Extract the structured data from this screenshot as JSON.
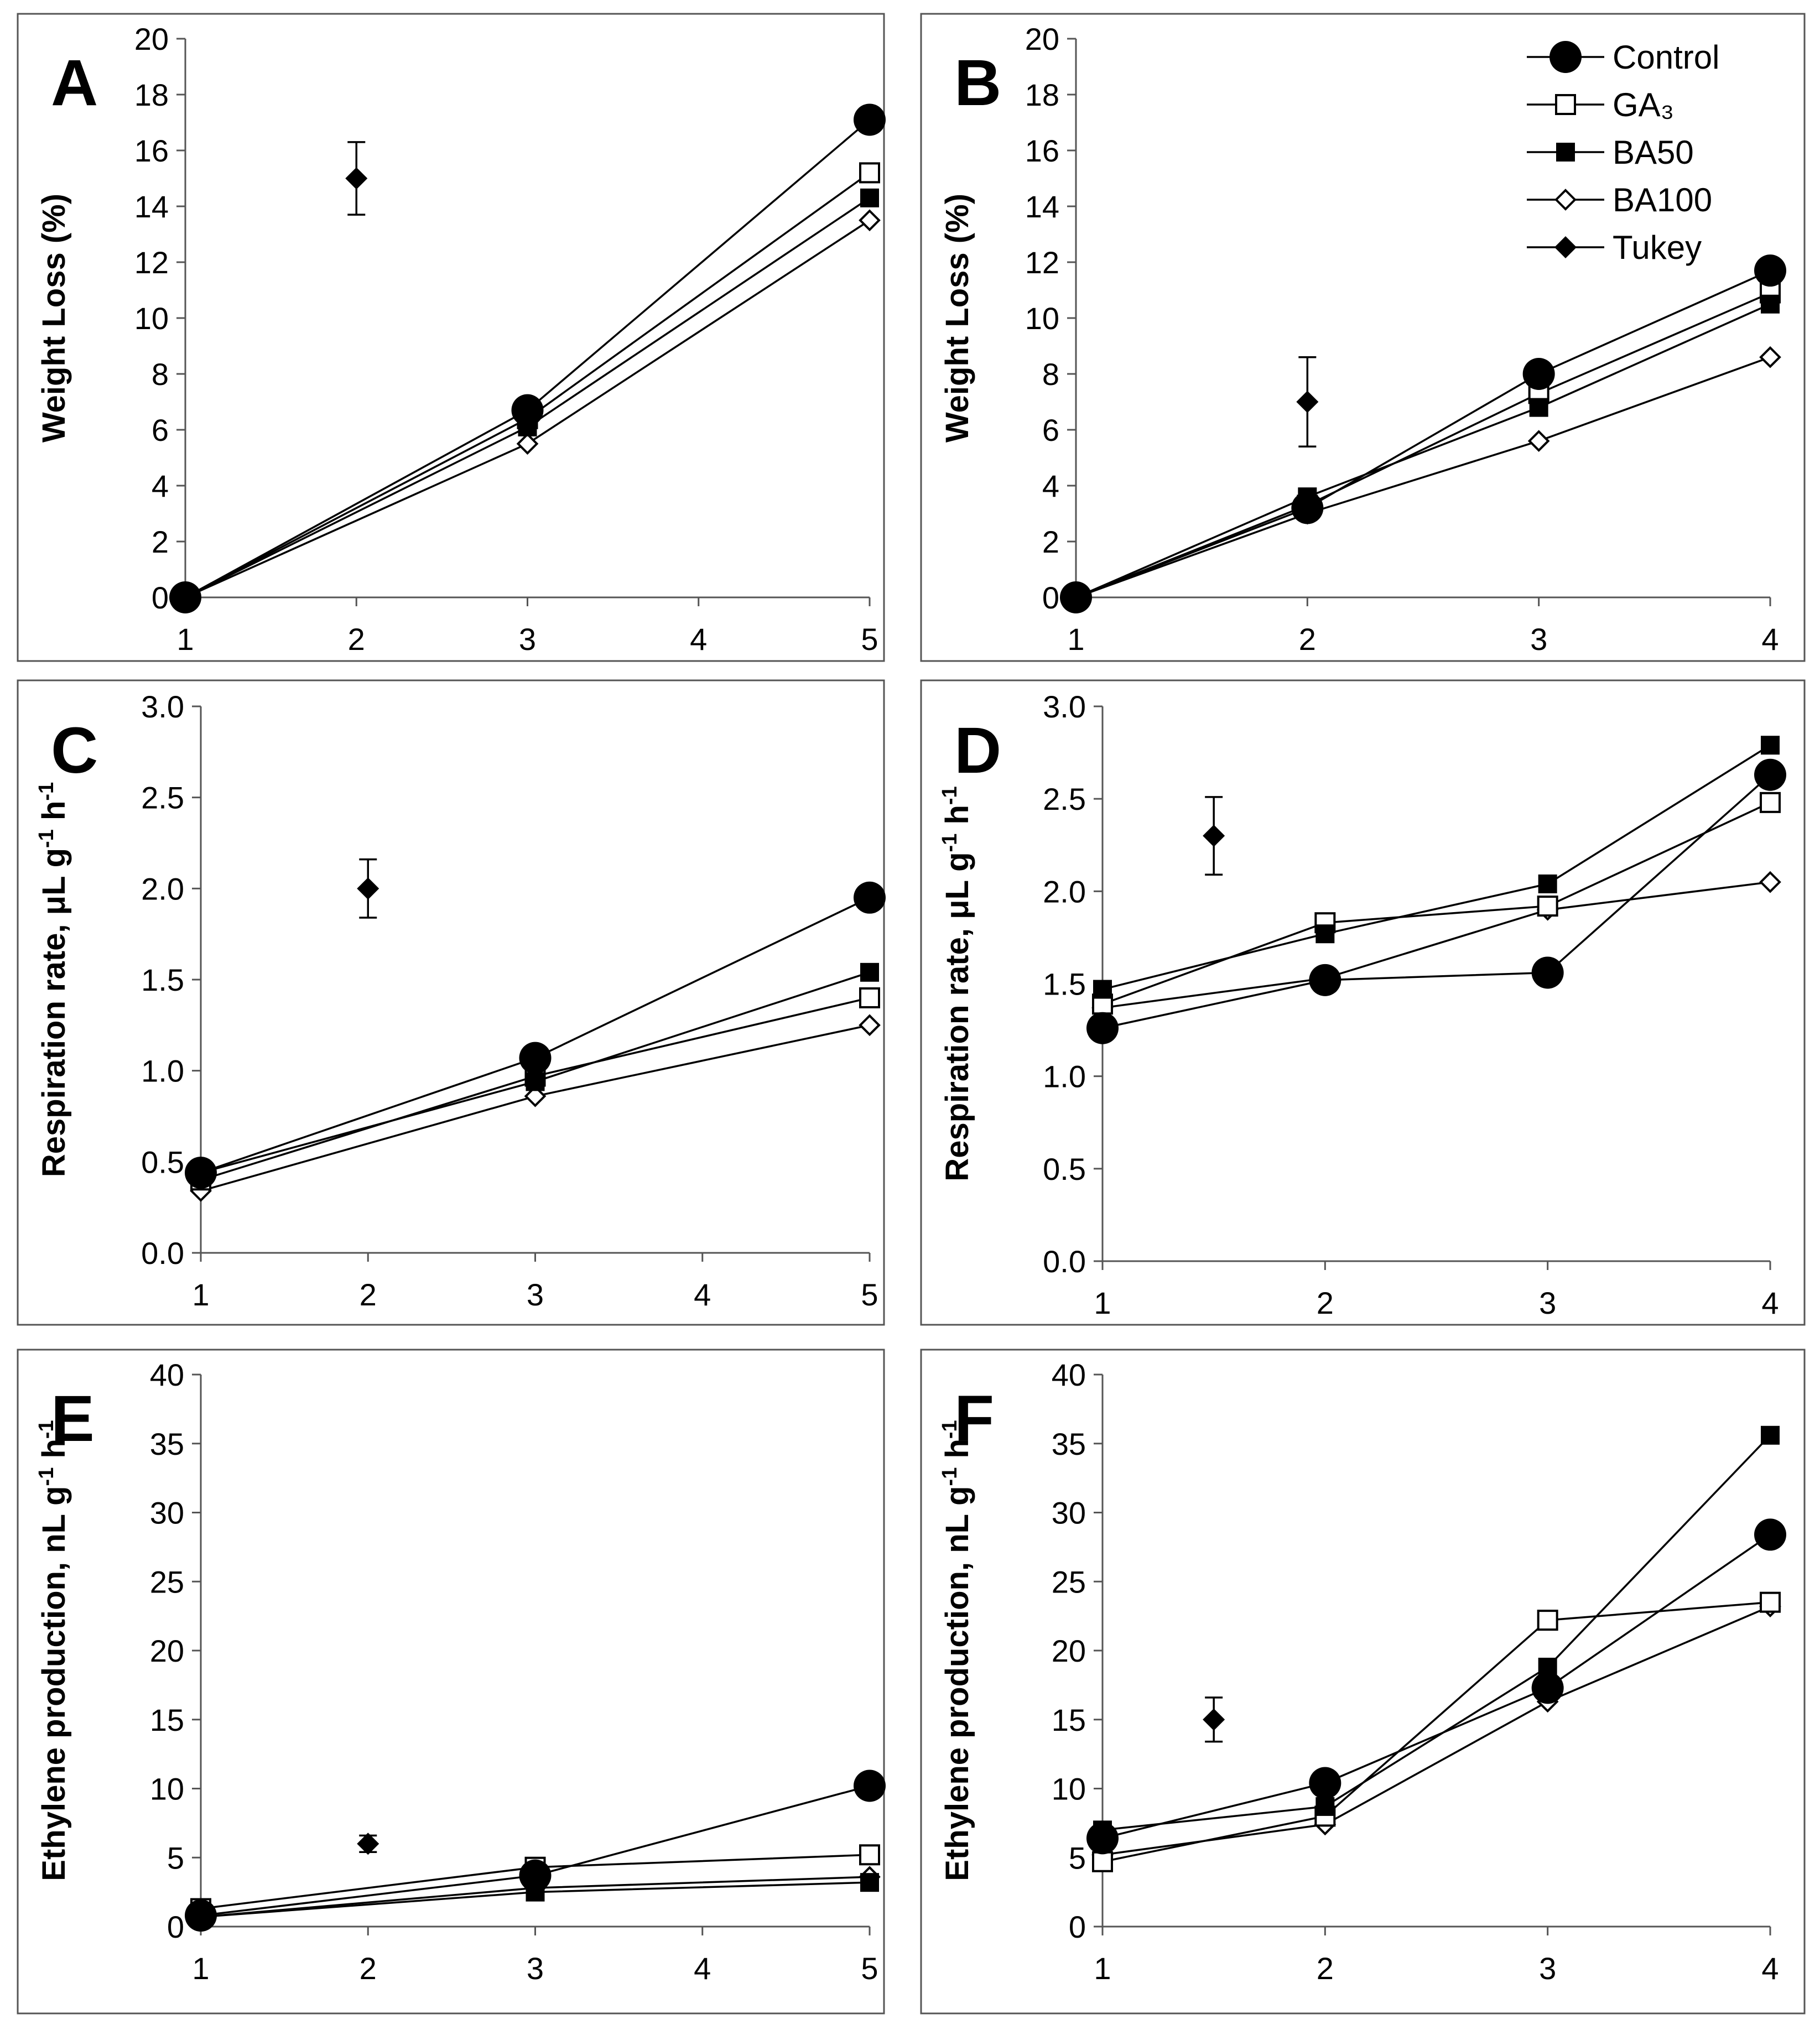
{
  "legend": [
    {
      "key": "control",
      "label": "Control",
      "marker": "circle-filled"
    },
    {
      "key": "ga3",
      "label": "GA₃",
      "marker": "square-open"
    },
    {
      "key": "ba50",
      "label": "BA50",
      "marker": "square-filled"
    },
    {
      "key": "ba100",
      "label": "BA100",
      "marker": "diamond-open"
    },
    {
      "key": "tukey",
      "label": "Tukey",
      "marker": "diamond-filled"
    }
  ],
  "chart_data": [
    {
      "panel": "A",
      "type": "line",
      "ylabel": "Weight Loss (%)",
      "ylabel_sup": [],
      "ylim": [
        0,
        20
      ],
      "yticks": [
        0,
        2,
        4,
        6,
        8,
        10,
        12,
        14,
        16,
        18,
        20
      ],
      "ytick_decimals": 0,
      "xlim": [
        1,
        5
      ],
      "xticks": [
        1,
        2,
        3,
        4,
        5
      ],
      "series": [
        {
          "name": "Control",
          "x": [
            1,
            3,
            5
          ],
          "values": [
            0,
            6.7,
            17.1
          ]
        },
        {
          "name": "GA3",
          "x": [
            1,
            3,
            5
          ],
          "values": [
            0,
            6.4,
            15.2
          ]
        },
        {
          "name": "BA50",
          "x": [
            1,
            3,
            5
          ],
          "values": [
            0,
            6.1,
            14.3
          ]
        },
        {
          "name": "BA100",
          "x": [
            1,
            3,
            5
          ],
          "values": [
            0,
            5.5,
            13.5
          ]
        }
      ],
      "tukey": {
        "x": 2,
        "y": 15.0,
        "err": 1.3
      }
    },
    {
      "panel": "B",
      "type": "line",
      "ylabel": "Weight Loss (%)",
      "ylabel_sup": [],
      "ylim": [
        0,
        20
      ],
      "yticks": [
        0,
        2,
        4,
        6,
        8,
        10,
        12,
        14,
        16,
        18,
        20
      ],
      "ytick_decimals": 0,
      "xlim": [
        1,
        4
      ],
      "xticks": [
        1,
        2,
        3,
        4
      ],
      "series": [
        {
          "name": "Control",
          "x": [
            1,
            2,
            3,
            4
          ],
          "values": [
            0,
            3.2,
            8.0,
            11.7
          ]
        },
        {
          "name": "GA3",
          "x": [
            1,
            2,
            3,
            4
          ],
          "values": [
            0,
            3.3,
            7.3,
            10.9
          ]
        },
        {
          "name": "BA50",
          "x": [
            1,
            2,
            3,
            4
          ],
          "values": [
            0,
            3.6,
            6.8,
            10.5
          ]
        },
        {
          "name": "BA100",
          "x": [
            1,
            2,
            3,
            4
          ],
          "values": [
            0,
            3.0,
            5.6,
            8.6
          ]
        }
      ],
      "tukey": {
        "x": 2,
        "y": 7.0,
        "err": 1.6
      }
    },
    {
      "panel": "C",
      "type": "line",
      "ylabel": "Respiration rate, μL g",
      "ylabel_sup": [
        "-1",
        "-1"
      ],
      "ylabel_mid": " h",
      "ylim": [
        0,
        3
      ],
      "yticks": [
        0,
        0.5,
        1,
        1.5,
        2,
        2.5,
        3
      ],
      "ytick_decimals": 1,
      "xlim": [
        1,
        5
      ],
      "xticks": [
        1,
        2,
        3,
        4,
        5
      ],
      "series": [
        {
          "name": "Control",
          "x": [
            1,
            3,
            5
          ],
          "values": [
            0.44,
            1.07,
            1.95
          ]
        },
        {
          "name": "GA3",
          "x": [
            1,
            3,
            5
          ],
          "values": [
            0.4,
            0.97,
            1.4
          ]
        },
        {
          "name": "BA50",
          "x": [
            1,
            3,
            5
          ],
          "values": [
            0.44,
            0.94,
            1.54
          ]
        },
        {
          "name": "BA100",
          "x": [
            1,
            3,
            5
          ],
          "values": [
            0.34,
            0.86,
            1.25
          ]
        }
      ],
      "tukey": {
        "x": 2,
        "y": 2.0,
        "err": 0.16
      }
    },
    {
      "panel": "D",
      "type": "line",
      "ylabel": "Respiration rate, μL g",
      "ylabel_sup": [
        "-1",
        "-1"
      ],
      "ylabel_mid": " h",
      "ylim": [
        0,
        3
      ],
      "yticks": [
        0,
        0.5,
        1,
        1.5,
        2,
        2.5,
        3
      ],
      "ytick_decimals": 1,
      "xlim": [
        1,
        4
      ],
      "xticks": [
        1,
        2,
        3,
        4
      ],
      "series": [
        {
          "name": "Control",
          "x": [
            1,
            2,
            3,
            4
          ],
          "values": [
            1.26,
            1.52,
            1.56,
            2.63
          ]
        },
        {
          "name": "GA3",
          "x": [
            1,
            2,
            3,
            4
          ],
          "values": [
            1.39,
            1.83,
            1.92,
            2.48
          ]
        },
        {
          "name": "BA50",
          "x": [
            1,
            2,
            3,
            4
          ],
          "values": [
            1.47,
            1.77,
            2.04,
            2.79
          ]
        },
        {
          "name": "BA100",
          "x": [
            1,
            2,
            3,
            4
          ],
          "values": [
            1.37,
            1.53,
            1.9,
            2.05
          ]
        }
      ],
      "tukey": {
        "x": 1.5,
        "y": 2.3,
        "err": 0.21
      }
    },
    {
      "panel": "E",
      "type": "line",
      "ylabel": "Ethylene production, nL g",
      "ylabel_sup": [
        "-1",
        "-1"
      ],
      "ylabel_mid": " h",
      "ylim": [
        0,
        40
      ],
      "yticks": [
        0,
        5,
        10,
        15,
        20,
        25,
        30,
        35,
        40
      ],
      "ytick_decimals": 0,
      "xlim": [
        1,
        5
      ],
      "xticks": [
        1,
        2,
        3,
        4,
        5
      ],
      "series": [
        {
          "name": "Control",
          "x": [
            1,
            3,
            5
          ],
          "values": [
            0.8,
            3.7,
            10.2
          ]
        },
        {
          "name": "GA3",
          "x": [
            1,
            3,
            5
          ],
          "values": [
            1.3,
            4.3,
            5.2
          ]
        },
        {
          "name": "BA50",
          "x": [
            1,
            3,
            5
          ],
          "values": [
            0.7,
            2.5,
            3.2
          ]
        },
        {
          "name": "BA100",
          "x": [
            1,
            3,
            5
          ],
          "values": [
            0.7,
            2.8,
            3.6
          ]
        }
      ],
      "tukey": {
        "x": 2,
        "y": 6.0,
        "err": 0.6
      }
    },
    {
      "panel": "F",
      "type": "line",
      "ylabel": "Ethylene production, nL g",
      "ylabel_sup": [
        "-1",
        "-1"
      ],
      "ylabel_mid": " h",
      "ylim": [
        0,
        40
      ],
      "yticks": [
        0,
        5,
        10,
        15,
        20,
        25,
        30,
        35,
        40
      ],
      "ytick_decimals": 0,
      "xlim": [
        1,
        4
      ],
      "xticks": [
        1,
        2,
        3,
        4
      ],
      "series": [
        {
          "name": "Control",
          "x": [
            1,
            2,
            3,
            4
          ],
          "values": [
            6.4,
            10.4,
            17.3,
            28.4
          ]
        },
        {
          "name": "GA3",
          "x": [
            1,
            2,
            3,
            4
          ],
          "values": [
            4.7,
            8.0,
            22.2,
            23.5
          ]
        },
        {
          "name": "BA50",
          "x": [
            1,
            2,
            3,
            4
          ],
          "values": [
            7.0,
            8.7,
            18.8,
            35.6
          ]
        },
        {
          "name": "BA100",
          "x": [
            1,
            2,
            3,
            4
          ],
          "values": [
            5.2,
            7.4,
            16.3,
            23.2
          ]
        }
      ],
      "tukey": {
        "x": 1.5,
        "y": 15.0,
        "err": 1.6
      }
    }
  ]
}
